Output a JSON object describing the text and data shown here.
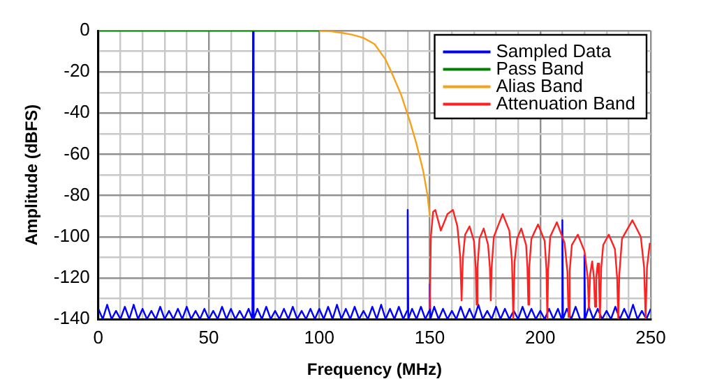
{
  "chart_data": {
    "type": "line",
    "xlabel": "Frequency (MHz)",
    "ylabel": "Amplitude (dBFS)",
    "xlim": [
      0,
      250
    ],
    "xticks": [
      0,
      {
        "value": 10,
        "label": null
      },
      {
        "value": 20,
        "label": null
      },
      {
        "value": 30,
        "label": null
      },
      {
        "value": 40,
        "label": null
      },
      50,
      {
        "value": 60,
        "label": null
      },
      {
        "value": 70,
        "label": null
      },
      {
        "value": 80,
        "label": null
      },
      {
        "value": 90,
        "label": null
      },
      100,
      {
        "value": 110,
        "label": null
      },
      {
        "value": 120,
        "label": null
      },
      {
        "value": 130,
        "label": null
      },
      {
        "value": 140,
        "label": null
      },
      150,
      {
        "value": 160,
        "label": null
      },
      {
        "value": 170,
        "label": null
      },
      {
        "value": 180,
        "label": null
      },
      {
        "value": 190,
        "label": null
      },
      200,
      {
        "value": 210,
        "label": null
      },
      {
        "value": 220,
        "label": null
      },
      {
        "value": 230,
        "label": null
      },
      {
        "value": 240,
        "label": null
      },
      250
    ],
    "ylim": [
      -140,
      0
    ],
    "yticks": [
      -140,
      {
        "value": -130,
        "label": null
      },
      -120,
      {
        "value": -110,
        "label": null
      },
      -100,
      {
        "value": -90,
        "label": null
      },
      -80,
      {
        "value": -70,
        "label": null
      },
      -60,
      {
        "value": -50,
        "label": null
      },
      -40,
      {
        "value": -30,
        "label": null
      },
      -20,
      {
        "value": -10,
        "label": null
      },
      0
    ],
    "grid": true,
    "legend": "top right",
    "marker": "none",
    "line_style": "solid",
    "series": [
      {
        "name": "Sampled Data",
        "color": "#0000ff",
        "x": [
          0,
          2,
          4,
          6,
          8,
          10,
          12,
          14,
          16,
          18,
          20,
          22,
          24,
          26,
          28,
          30,
          32,
          34,
          36,
          38,
          40,
          42,
          44,
          46,
          48,
          50,
          52,
          54,
          56,
          58,
          60,
          62,
          64,
          66,
          68,
          69.7,
          70,
          70.3,
          72,
          74,
          76,
          78,
          80,
          82,
          84,
          86,
          88,
          90,
          92,
          94,
          96,
          98,
          100,
          102,
          104,
          106,
          108,
          110,
          112,
          114,
          116,
          118,
          120,
          122,
          124,
          126,
          128,
          130,
          132,
          134,
          136,
          138,
          139.7,
          140,
          140.3,
          142,
          144,
          146,
          148,
          149.7,
          150,
          150.3,
          152,
          154,
          156,
          158,
          160,
          162,
          164,
          166,
          168,
          170,
          172,
          174,
          176,
          178,
          180,
          182,
          184,
          186,
          188,
          190,
          192,
          194,
          196,
          198,
          200,
          202,
          204,
          206,
          208,
          209.7,
          210,
          210.3,
          212,
          214,
          216,
          218,
          219.7,
          220,
          220.3,
          222,
          224,
          226,
          228,
          230,
          232,
          234,
          236,
          238,
          240,
          242,
          244,
          246,
          248,
          250
        ],
        "values": [
          -135,
          -140,
          -133,
          -140,
          -136,
          -140,
          -134,
          -140,
          -133,
          -140,
          -135,
          -140,
          -136,
          -140,
          -134,
          -140,
          -136,
          -140,
          -135,
          -140,
          -134,
          -140,
          -136,
          -140,
          -135,
          -140,
          -136,
          -140,
          -134,
          -140,
          -135,
          -140,
          -136,
          -140,
          -135,
          -140,
          0,
          -140,
          -135,
          -140,
          -134,
          -140,
          -136,
          -140,
          -135,
          -140,
          -134,
          -140,
          -136,
          -140,
          -135,
          -140,
          -135,
          -140,
          -134,
          -140,
          -133,
          -140,
          -135,
          -140,
          -134,
          -140,
          -136,
          -140,
          -134,
          -140,
          -133,
          -140,
          -135,
          -140,
          -134,
          -140,
          -136,
          -87,
          -140,
          -135,
          -140,
          -134,
          -140,
          -136,
          -123,
          -140,
          -134,
          -140,
          -135,
          -140,
          -136,
          -140,
          -134,
          -140,
          -135,
          -140,
          -133,
          -140,
          -136,
          -140,
          -134,
          -140,
          -135,
          -140,
          -136,
          -140,
          -134,
          -140,
          -135,
          -140,
          -136,
          -140,
          -135,
          -140,
          -135,
          -140,
          -92,
          -140,
          -135,
          -140,
          -134,
          -140,
          -140,
          -109,
          -140,
          -134,
          -140,
          -135,
          -140,
          -136,
          -140,
          -134,
          -140,
          -135,
          -140,
          -133,
          -140,
          -136,
          -140,
          -135
        ]
      },
      {
        "name": "Pass Band",
        "color": "#008000",
        "x": [
          0,
          100
        ],
        "values": [
          0,
          0
        ]
      },
      {
        "name": "Alias Band",
        "color": "#f7a11a",
        "x": [
          100,
          105,
          110,
          115,
          120,
          125,
          130,
          133,
          137,
          141,
          144,
          147,
          149,
          150
        ],
        "values": [
          0,
          -0.3,
          -1,
          -2,
          -3.5,
          -6.5,
          -14,
          -21,
          -31,
          -44,
          -55,
          -68,
          -80,
          -90
        ]
      },
      {
        "name": "Attenuation Band",
        "color": "#ff2020",
        "x": [
          150,
          150.5,
          151.5,
          152.5,
          155,
          158,
          160.5,
          162.5,
          163.8,
          164.4,
          165,
          166,
          168,
          170,
          170.8,
          171.2,
          171.6,
          172.5,
          174.4,
          176.4,
          177.2,
          177.6,
          178,
          179,
          183,
          186,
          187.2,
          187.8,
          188.4,
          189.5,
          191.4,
          193.6,
          194.2,
          194.6,
          195,
          196,
          199,
          202,
          202.8,
          203.2,
          203.6,
          204.5,
          207.5,
          211,
          212.3,
          212.8,
          213.3,
          214.3,
          217,
          220,
          221.5,
          222,
          222.6,
          223.5,
          224.3,
          224.8,
          225.3,
          226,
          226.6,
          227,
          227.6,
          228.5,
          231,
          233.8,
          234.8,
          235.3,
          235.8,
          237,
          241.7,
          245.5,
          247,
          247.7,
          248.3,
          249.6
        ],
        "values": [
          -135,
          -100,
          -88,
          -87,
          -97,
          -89,
          -87,
          -95,
          -110,
          -131,
          -110,
          -99,
          -95,
          -102,
          -115,
          -133,
          -115,
          -101,
          -96,
          -104,
          -115,
          -131,
          -115,
          -100,
          -89,
          -97,
          -112,
          -140,
          -112,
          -101,
          -96,
          -104,
          -115,
          -133,
          -115,
          -101,
          -94,
          -102,
          -116,
          -140,
          -116,
          -100,
          -93,
          -103,
          -117,
          -139,
          -117,
          -104,
          -99,
          -107,
          -120,
          -135,
          -118,
          -112,
          -120,
          -134,
          -120,
          -113,
          -120,
          -140,
          -115,
          -104,
          -99,
          -106,
          -120,
          -140,
          -118,
          -101,
          -92,
          -100,
          -115,
          -140,
          -115,
          -103
        ]
      }
    ]
  }
}
